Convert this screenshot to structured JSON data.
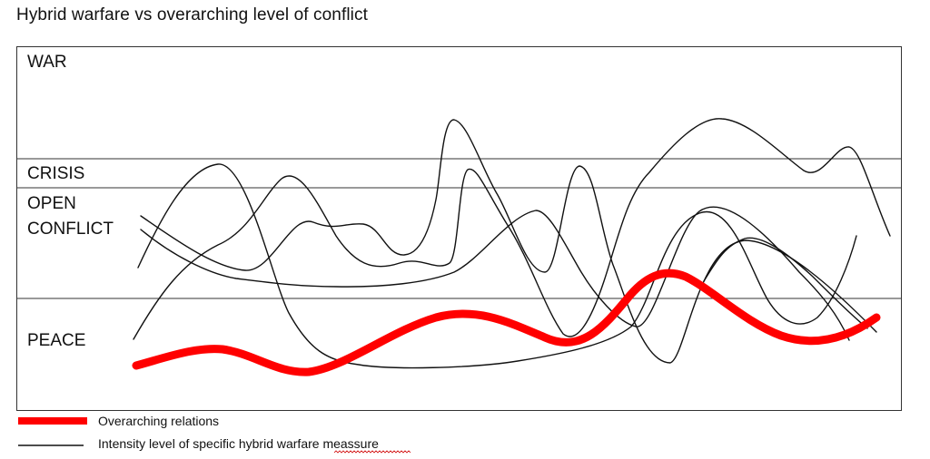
{
  "title": "Hybrid warfare vs overarching level of conflict",
  "bands": {
    "war": "WAR",
    "crisis": "CRISIS",
    "open_conflict_line1": "OPEN",
    "open_conflict_line2": "CONFLICT",
    "peace": "PEACE"
  },
  "legend": {
    "overarching": "Overarching relations",
    "intensity": "Intensity level of specific hybrid warfare meassure"
  },
  "colors": {
    "overarching": "#ff0000",
    "intensity": "#111111",
    "frame": "#333333"
  }
}
